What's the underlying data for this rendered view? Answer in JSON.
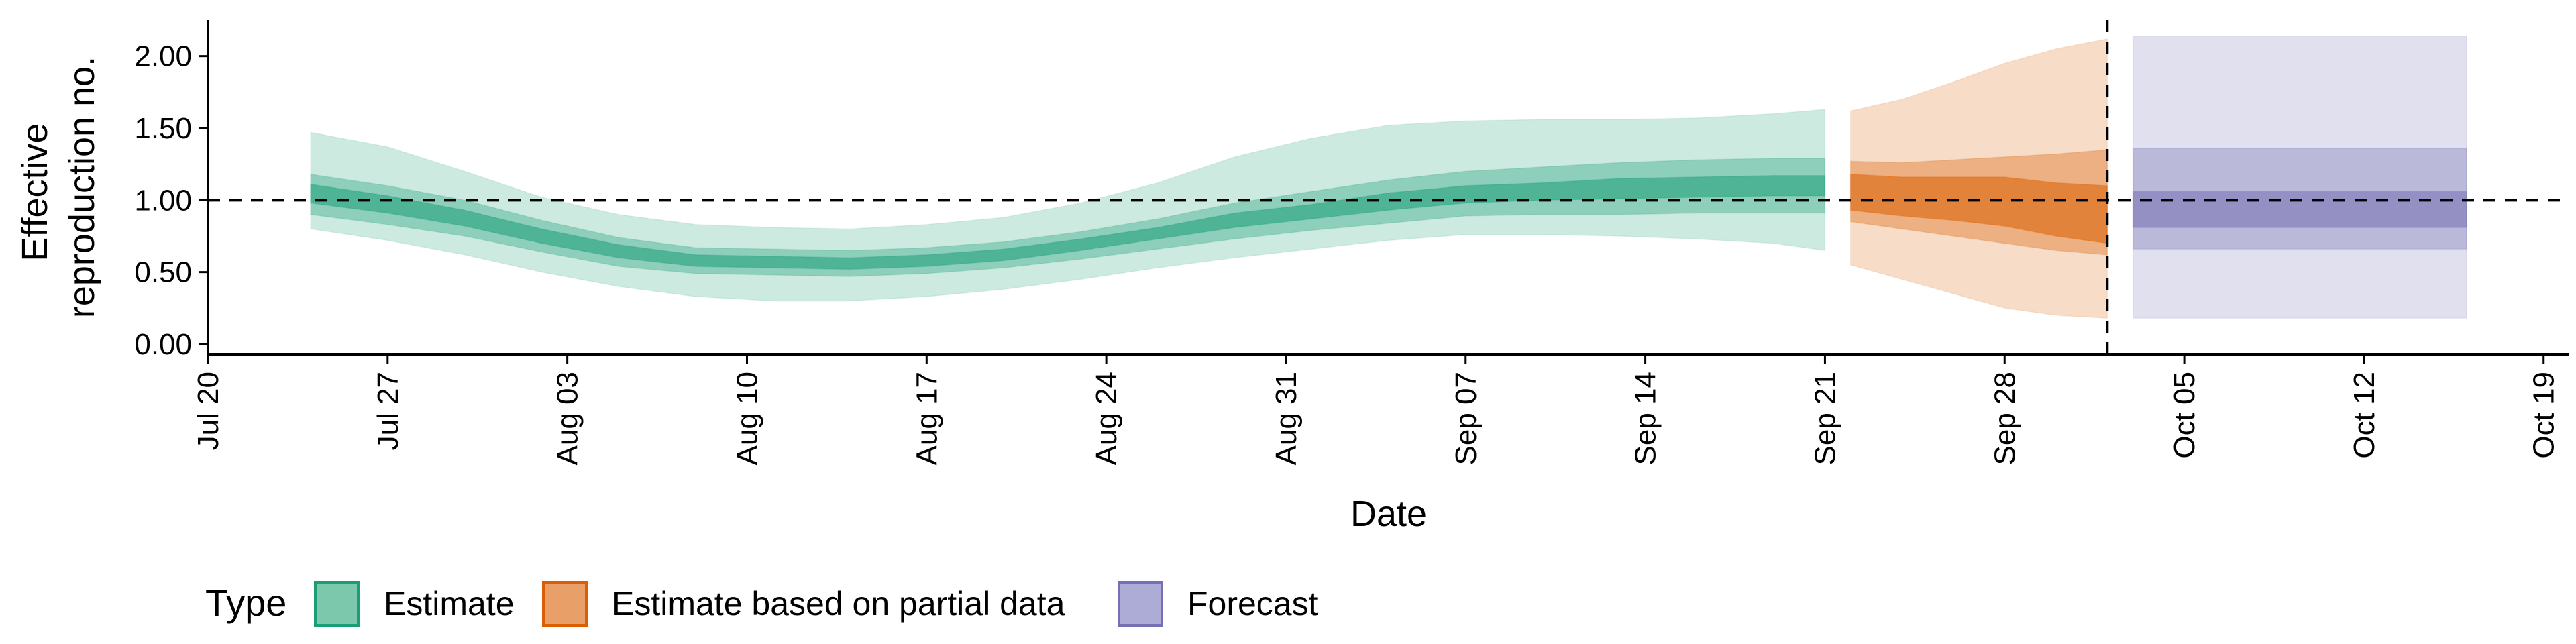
{
  "chart_data": {
    "type": "area",
    "xlabel": "Date",
    "ylabel_lines": [
      "Effective",
      "reproduction no."
    ],
    "x_range": [
      "2020-07-20",
      "2020-10-20"
    ],
    "ylim": [
      -0.07,
      2.25
    ],
    "x_tick_dates": [
      "2020-07-20",
      "2020-07-27",
      "2020-08-03",
      "2020-08-10",
      "2020-08-17",
      "2020-08-24",
      "2020-08-31",
      "2020-09-07",
      "2020-09-14",
      "2020-09-21",
      "2020-09-28",
      "2020-10-05",
      "2020-10-12",
      "2020-10-19"
    ],
    "x_tick_labels": [
      "Jul 20",
      "Jul 27",
      "Aug 03",
      "Aug 10",
      "Aug 17",
      "Aug 24",
      "Aug 31",
      "Sep 07",
      "Sep 14",
      "Sep 21",
      "Sep 28",
      "Oct 05",
      "Oct 12",
      "Oct 19"
    ],
    "y_ticks": [
      0,
      0.5,
      1.0,
      1.5,
      2.0
    ],
    "y_tick_labels": [
      "0.00",
      "0.50",
      "1.00",
      "1.50",
      "2.00"
    ],
    "reference_line_y": 1.0,
    "vertical_line_date": "2020-10-02",
    "grid": false,
    "legend": {
      "title": "Type",
      "position": "bottom-left",
      "items": [
        {
          "label": "Estimate",
          "fill": "#7BC8AC",
          "stroke": "#1B9E77"
        },
        {
          "label": "Estimate based on partial data",
          "fill": "#E9A068",
          "stroke": "#D95F02"
        },
        {
          "label": "Forecast",
          "fill": "#ADACD6",
          "stroke": "#7570B3"
        }
      ]
    },
    "series": [
      {
        "type_label": "Estimate",
        "color": "#1B9E77",
        "x": [
          "2020-07-24",
          "2020-07-27",
          "2020-07-30",
          "2020-08-02",
          "2020-08-05",
          "2020-08-08",
          "2020-08-11",
          "2020-08-14",
          "2020-08-17",
          "2020-08-20",
          "2020-08-23",
          "2020-08-26",
          "2020-08-29",
          "2020-09-01",
          "2020-09-04",
          "2020-09-07",
          "2020-09-10",
          "2020-09-13",
          "2020-09-16",
          "2020-09-19",
          "2020-09-21"
        ],
        "median": [
          1.05,
          0.97,
          0.87,
          0.75,
          0.64,
          0.58,
          0.57,
          0.56,
          0.58,
          0.62,
          0.69,
          0.77,
          0.86,
          0.92,
          0.99,
          1.04,
          1.06,
          1.08,
          1.09,
          1.1,
          1.1
        ],
        "lower_50": [
          0.98,
          0.91,
          0.82,
          0.7,
          0.6,
          0.54,
          0.53,
          0.52,
          0.54,
          0.58,
          0.65,
          0.73,
          0.81,
          0.87,
          0.93,
          0.98,
          1.0,
          1.01,
          1.02,
          1.03,
          1.03
        ],
        "upper_50": [
          1.11,
          1.03,
          0.93,
          0.8,
          0.69,
          0.62,
          0.61,
          0.6,
          0.62,
          0.66,
          0.73,
          0.81,
          0.91,
          0.97,
          1.05,
          1.1,
          1.12,
          1.15,
          1.16,
          1.17,
          1.17
        ],
        "lower_90": [
          0.9,
          0.83,
          0.75,
          0.64,
          0.54,
          0.49,
          0.48,
          0.47,
          0.49,
          0.53,
          0.59,
          0.66,
          0.73,
          0.79,
          0.84,
          0.89,
          0.9,
          0.9,
          0.91,
          0.91,
          0.91
        ],
        "upper_90": [
          1.18,
          1.1,
          1.0,
          0.86,
          0.74,
          0.67,
          0.66,
          0.65,
          0.67,
          0.71,
          0.78,
          0.87,
          0.98,
          1.06,
          1.14,
          1.2,
          1.23,
          1.26,
          1.28,
          1.29,
          1.29
        ],
        "lower_ci": [
          0.8,
          0.72,
          0.62,
          0.5,
          0.4,
          0.33,
          0.3,
          0.3,
          0.33,
          0.38,
          0.45,
          0.53,
          0.6,
          0.66,
          0.72,
          0.76,
          0.76,
          0.75,
          0.73,
          0.7,
          0.65
        ],
        "upper_ci": [
          1.47,
          1.37,
          1.2,
          1.02,
          0.9,
          0.83,
          0.81,
          0.8,
          0.83,
          0.88,
          0.98,
          1.12,
          1.3,
          1.43,
          1.52,
          1.55,
          1.56,
          1.56,
          1.57,
          1.6,
          1.63
        ]
      },
      {
        "type_label": "Estimate based on partial data",
        "color": "#D95F02",
        "x": [
          "2020-09-22",
          "2020-09-24",
          "2020-09-26",
          "2020-09-28",
          "2020-09-30",
          "2020-10-02"
        ],
        "median": [
          1.05,
          1.02,
          1.0,
          0.98,
          0.93,
          0.9
        ],
        "lower_50": [
          0.93,
          0.89,
          0.86,
          0.82,
          0.75,
          0.7
        ],
        "upper_50": [
          1.18,
          1.16,
          1.16,
          1.16,
          1.12,
          1.1
        ],
        "lower_90": [
          0.85,
          0.8,
          0.75,
          0.7,
          0.65,
          0.62
        ],
        "upper_90": [
          1.27,
          1.26,
          1.28,
          1.3,
          1.32,
          1.35
        ],
        "lower_ci": [
          0.55,
          0.45,
          0.35,
          0.25,
          0.2,
          0.18
        ],
        "upper_ci": [
          1.62,
          1.7,
          1.82,
          1.95,
          2.05,
          2.12
        ]
      },
      {
        "type_label": "Forecast",
        "color": "#7570B3",
        "x": [
          "2020-10-03",
          "2020-10-16"
        ],
        "median": [
          0.93,
          0.93
        ],
        "lower_50": [
          0.81,
          0.81
        ],
        "upper_50": [
          1.06,
          1.06
        ],
        "lower_90": [
          0.66,
          0.66
        ],
        "upper_90": [
          1.36,
          1.36
        ],
        "lower_ci": [
          0.18,
          0.18
        ],
        "upper_ci": [
          2.14,
          2.14
        ]
      }
    ]
  }
}
